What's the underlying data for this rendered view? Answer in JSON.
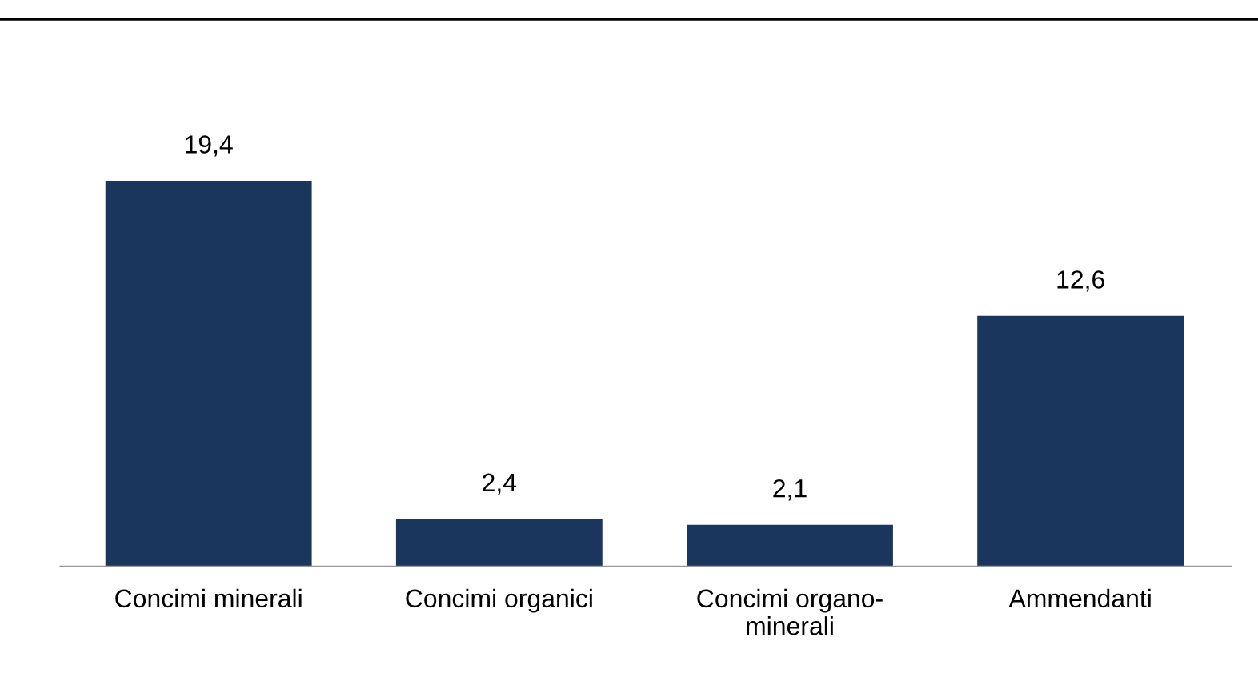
{
  "chart_data": {
    "type": "bar",
    "categories": [
      "Concimi minerali",
      "Concimi organici",
      "Concimi organo-\nminerali",
      "Ammendanti"
    ],
    "values": [
      19.4,
      2.4,
      2.1,
      12.6
    ],
    "value_labels": [
      "19,4",
      "2,4",
      "2,1",
      "12,6"
    ],
    "color": "#1b365d",
    "grid": false,
    "legend": false
  }
}
